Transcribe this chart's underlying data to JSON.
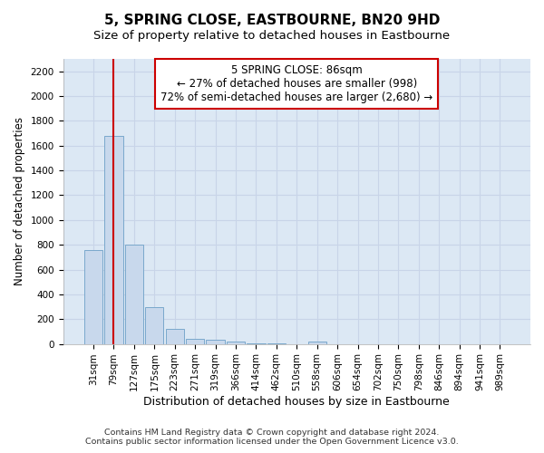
{
  "title": "5, SPRING CLOSE, EASTBOURNE, BN20 9HD",
  "subtitle": "Size of property relative to detached houses in Eastbourne",
  "xlabel": "Distribution of detached houses by size in Eastbourne",
  "ylabel": "Number of detached properties",
  "footnote1": "Contains HM Land Registry data © Crown copyright and database right 2024.",
  "footnote2": "Contains public sector information licensed under the Open Government Licence v3.0.",
  "categories": [
    "31sqm",
    "79sqm",
    "127sqm",
    "175sqm",
    "223sqm",
    "271sqm",
    "319sqm",
    "366sqm",
    "414sqm",
    "462sqm",
    "510sqm",
    "558sqm",
    "606sqm",
    "654sqm",
    "702sqm",
    "750sqm",
    "798sqm",
    "846sqm",
    "894sqm",
    "941sqm",
    "989sqm"
  ],
  "values": [
    760,
    1680,
    800,
    295,
    120,
    38,
    30,
    20,
    8,
    5,
    0,
    20,
    0,
    0,
    0,
    0,
    0,
    0,
    0,
    0,
    0
  ],
  "bar_color": "#c8d8ec",
  "bar_edge_color": "#7aa8cc",
  "vline_x": 1,
  "vline_color": "#cc0000",
  "annotation_text": "5 SPRING CLOSE: 86sqm\n← 27% of detached houses are smaller (998)\n72% of semi-detached houses are larger (2,680) →",
  "annotation_box_facecolor": "#ffffff",
  "annotation_box_edgecolor": "#cc0000",
  "ylim": [
    0,
    2300
  ],
  "yticks": [
    0,
    200,
    400,
    600,
    800,
    1000,
    1200,
    1400,
    1600,
    1800,
    2000,
    2200
  ],
  "grid_color": "#c8d4e8",
  "plot_bg_color": "#dce8f4",
  "fig_bg_color": "#ffffff",
  "title_fontsize": 11,
  "subtitle_fontsize": 9.5,
  "xlabel_fontsize": 9,
  "ylabel_fontsize": 8.5,
  "tick_fontsize": 7.5,
  "footnote_fontsize": 6.8,
  "annot_fontsize": 8.5
}
